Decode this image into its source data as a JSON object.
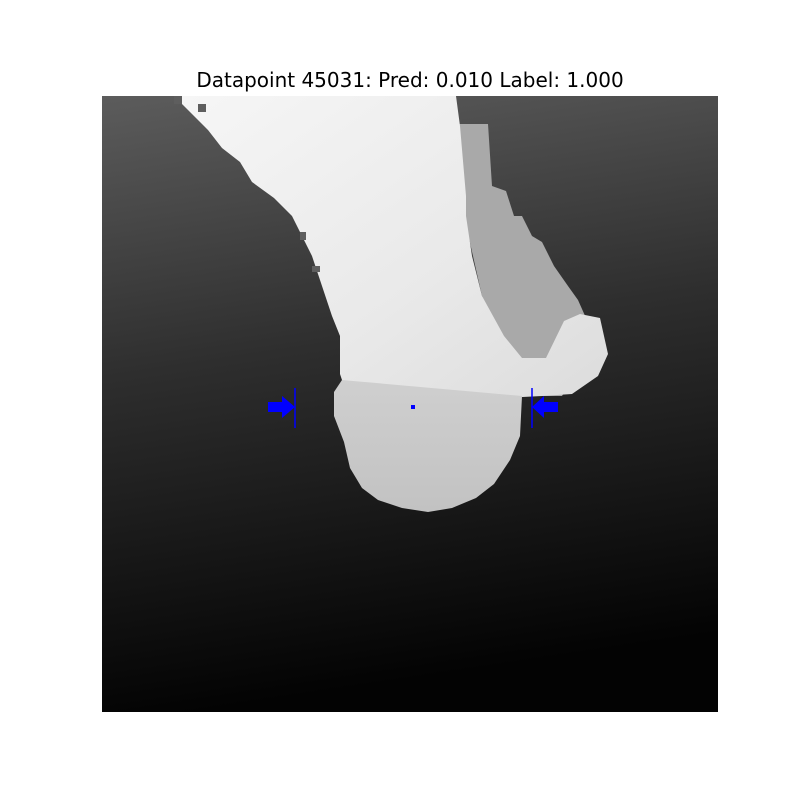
{
  "figure": {
    "title": "Datapoint 45031: Pred: 0.010 Label: 1.000"
  },
  "image": {
    "description_tags": [
      "depth-image",
      "grayscale"
    ],
    "background_gradient": [
      "#5a5a5a",
      "#000000"
    ],
    "object_color_light": "#f4f4f4",
    "object_color_shadow": "#a9a9a9",
    "marker_color": "#0000ff"
  }
}
